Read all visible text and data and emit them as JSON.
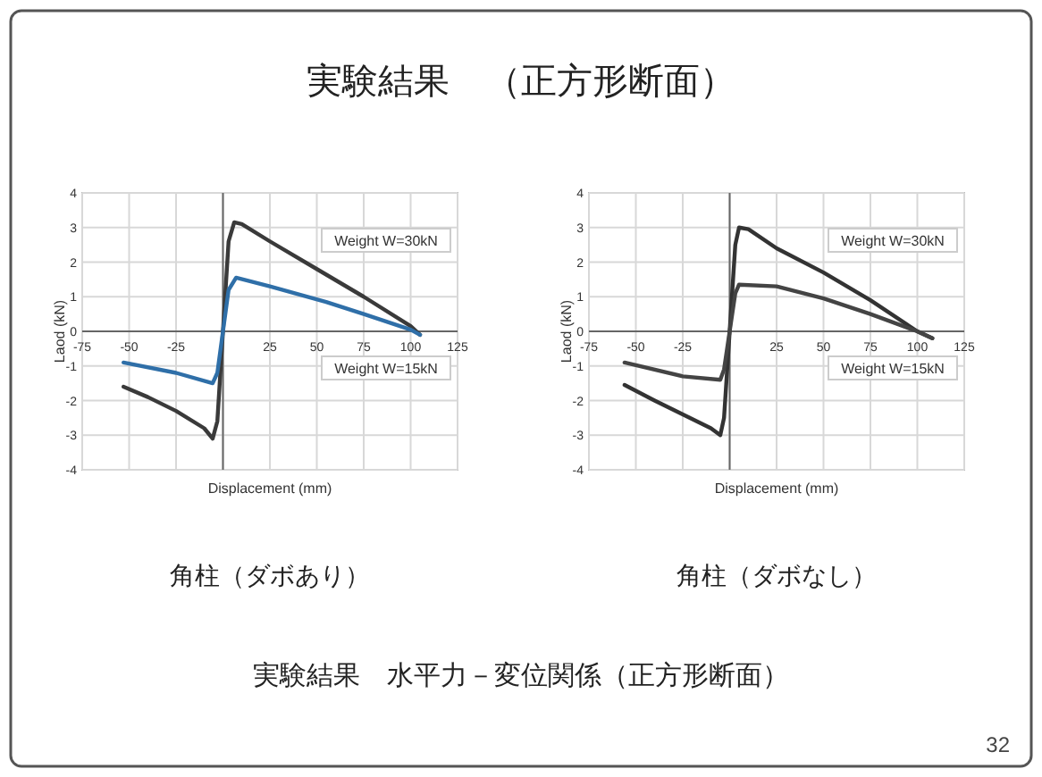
{
  "chart_data": [
    {
      "type": "other",
      "title": "実験結果　（正方形断面）"
    },
    {
      "type": "line",
      "title": "角柱（ダボあり）",
      "xlabel": "Displacement (mm)",
      "ylabel": "Laod (kN)",
      "xlim": [
        -75,
        125
      ],
      "xticks": [
        -75,
        -50,
        -25,
        {
          "value": 0,
          "label": null
        },
        25,
        50,
        75,
        100,
        125
      ],
      "ylim": [
        -4,
        4
      ],
      "yticks": [
        -4,
        -3,
        -2,
        -1,
        0,
        1,
        2,
        3,
        4
      ],
      "grid": true,
      "series": [
        {
          "name": "Weight W=30kN",
          "color": "#3a3a3a",
          "x": [
            -53,
            -40,
            -25,
            -10,
            -5.5,
            -3,
            0,
            3,
            6,
            10,
            25,
            50,
            75,
            100,
            105
          ],
          "values": [
            -1.6,
            -1.9,
            -2.3,
            -2.8,
            -3.1,
            -2.6,
            0,
            2.6,
            3.15,
            3.1,
            2.6,
            1.8,
            1,
            0.15,
            -0.1
          ]
        },
        {
          "name": "Weight W=15kN",
          "color": "#2f6fa8",
          "x": [
            -53,
            -25,
            -5.5,
            -3,
            0,
            3,
            7,
            25,
            55,
            75,
            100,
            105
          ],
          "values": [
            -0.9,
            -1.2,
            -1.5,
            -1.2,
            0,
            1.2,
            1.55,
            1.3,
            0.85,
            0.5,
            0.05,
            -0.1
          ]
        }
      ]
    },
    {
      "type": "line",
      "title": "角柱（ダボなし）",
      "xlabel": "Displacement (mm)",
      "ylabel": "Laod (kN)",
      "xlim": [
        -75,
        125
      ],
      "xticks": [
        -75,
        -50,
        -25,
        {
          "value": 0,
          "label": null
        },
        25,
        50,
        75,
        100,
        125
      ],
      "ylim": [
        -4,
        4
      ],
      "yticks": [
        -4,
        -3,
        -2,
        -1,
        0,
        1,
        2,
        3,
        4
      ],
      "grid": true,
      "series": [
        {
          "name": "Weight W=30kN",
          "color": "#333333",
          "x": [
            -56,
            -40,
            -25,
            -10,
            -5,
            -3,
            0,
            3,
            5,
            10,
            25,
            50,
            75,
            100,
            108
          ],
          "values": [
            -1.55,
            -2,
            -2.4,
            -2.8,
            -3,
            -2.5,
            0,
            2.5,
            3,
            2.95,
            2.4,
            1.7,
            0.9,
            0,
            -0.2
          ]
        },
        {
          "name": "Weight W=15kN",
          "color": "#444444",
          "x": [
            -56,
            -25,
            -5,
            -3,
            0,
            3,
            5,
            25,
            50,
            75,
            100,
            108
          ],
          "values": [
            -0.9,
            -1.3,
            -1.4,
            -1.1,
            0,
            1.1,
            1.35,
            1.3,
            0.95,
            0.5,
            0,
            -0.2
          ]
        }
      ]
    },
    {
      "type": "other",
      "annotations": [
        "実験結果　水平力－変位関係（正方形断面）",
        "32"
      ]
    }
  ]
}
